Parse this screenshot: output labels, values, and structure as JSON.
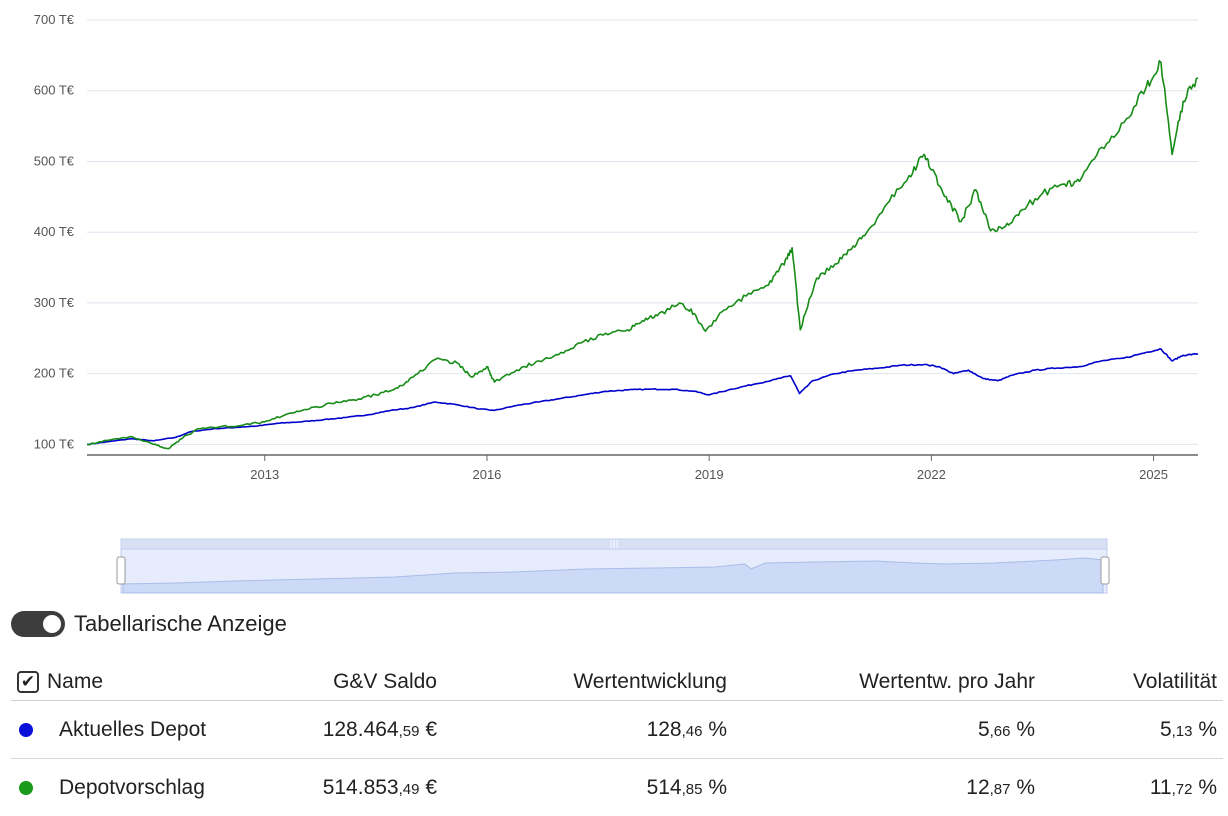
{
  "chart_data": {
    "type": "line",
    "y_ticks": [
      {
        "value": 100,
        "label": "100 T€"
      },
      {
        "value": 200,
        "label": "200 T€"
      },
      {
        "value": 300,
        "label": "300 T€"
      },
      {
        "value": 400,
        "label": "400 T€"
      },
      {
        "value": 500,
        "label": "500 T€"
      },
      {
        "value": 600,
        "label": "600 T€"
      },
      {
        "value": 700,
        "label": "700 T€"
      }
    ],
    "x_ticks": [
      {
        "value": 2013,
        "label": "2013"
      },
      {
        "value": 2016,
        "label": "2016"
      },
      {
        "value": 2019,
        "label": "2019"
      },
      {
        "value": 2022,
        "label": "2022"
      },
      {
        "value": 2025,
        "label": "2025"
      }
    ],
    "xlim": [
      2010.6,
      2025.6
    ],
    "ylim": [
      85,
      700
    ],
    "grid": true,
    "series": [
      {
        "color": "#0000cc",
        "points": [
          [
            2010.6,
            100
          ],
          [
            2010.9,
            104
          ],
          [
            2011.2,
            108
          ],
          [
            2011.5,
            105
          ],
          [
            2011.8,
            110
          ],
          [
            2012.0,
            118
          ],
          [
            2012.3,
            122
          ],
          [
            2012.6,
            124
          ],
          [
            2012.9,
            126
          ],
          [
            2013.2,
            130
          ],
          [
            2013.5,
            132
          ],
          [
            2013.8,
            135
          ],
          [
            2014.1,
            138
          ],
          [
            2014.4,
            142
          ],
          [
            2014.7,
            148
          ],
          [
            2015.0,
            152
          ],
          [
            2015.3,
            160
          ],
          [
            2015.6,
            156
          ],
          [
            2015.9,
            150
          ],
          [
            2016.1,
            148
          ],
          [
            2016.4,
            155
          ],
          [
            2016.7,
            160
          ],
          [
            2017.0,
            165
          ],
          [
            2017.3,
            170
          ],
          [
            2017.6,
            175
          ],
          [
            2017.9,
            177
          ],
          [
            2018.2,
            178
          ],
          [
            2018.5,
            178
          ],
          [
            2018.8,
            175
          ],
          [
            2019.0,
            170
          ],
          [
            2019.3,
            178
          ],
          [
            2019.6,
            185
          ],
          [
            2019.9,
            192
          ],
          [
            2020.1,
            197
          ],
          [
            2020.22,
            172
          ],
          [
            2020.4,
            190
          ],
          [
            2020.7,
            200
          ],
          [
            2021.0,
            205
          ],
          [
            2021.3,
            208
          ],
          [
            2021.6,
            212
          ],
          [
            2021.9,
            213
          ],
          [
            2022.1,
            210
          ],
          [
            2022.3,
            200
          ],
          [
            2022.5,
            205
          ],
          [
            2022.7,
            193
          ],
          [
            2022.9,
            190
          ],
          [
            2023.1,
            198
          ],
          [
            2023.4,
            205
          ],
          [
            2023.7,
            208
          ],
          [
            2024.0,
            210
          ],
          [
            2024.3,
            218
          ],
          [
            2024.6,
            222
          ],
          [
            2024.9,
            230
          ],
          [
            2025.1,
            235
          ],
          [
            2025.25,
            218
          ],
          [
            2025.4,
            226
          ],
          [
            2025.6,
            228
          ]
        ]
      },
      {
        "color": "#168c16",
        "points": [
          [
            2010.6,
            100
          ],
          [
            2010.9,
            106
          ],
          [
            2011.2,
            111
          ],
          [
            2011.5,
            100
          ],
          [
            2011.7,
            94
          ],
          [
            2011.9,
            110
          ],
          [
            2012.1,
            122
          ],
          [
            2012.4,
            125
          ],
          [
            2012.7,
            127
          ],
          [
            2013.0,
            132
          ],
          [
            2013.3,
            143
          ],
          [
            2013.6,
            150
          ],
          [
            2013.9,
            158
          ],
          [
            2014.2,
            163
          ],
          [
            2014.5,
            170
          ],
          [
            2014.8,
            180
          ],
          [
            2015.0,
            195
          ],
          [
            2015.3,
            220
          ],
          [
            2015.6,
            215
          ],
          [
            2015.8,
            195
          ],
          [
            2016.0,
            210
          ],
          [
            2016.1,
            188
          ],
          [
            2016.4,
            205
          ],
          [
            2016.7,
            218
          ],
          [
            2017.0,
            230
          ],
          [
            2017.3,
            245
          ],
          [
            2017.6,
            257
          ],
          [
            2017.9,
            262
          ],
          [
            2018.1,
            275
          ],
          [
            2018.3,
            282
          ],
          [
            2018.6,
            300
          ],
          [
            2018.8,
            285
          ],
          [
            2018.95,
            260
          ],
          [
            2019.2,
            290
          ],
          [
            2019.5,
            310
          ],
          [
            2019.8,
            325
          ],
          [
            2020.0,
            355
          ],
          [
            2020.12,
            378
          ],
          [
            2020.23,
            262
          ],
          [
            2020.45,
            335
          ],
          [
            2020.7,
            355
          ],
          [
            2020.9,
            375
          ],
          [
            2021.1,
            395
          ],
          [
            2021.4,
            440
          ],
          [
            2021.7,
            480
          ],
          [
            2021.9,
            510
          ],
          [
            2022.0,
            488
          ],
          [
            2022.2,
            450
          ],
          [
            2022.4,
            415
          ],
          [
            2022.6,
            460
          ],
          [
            2022.8,
            402
          ],
          [
            2023.0,
            408
          ],
          [
            2023.2,
            430
          ],
          [
            2023.5,
            455
          ],
          [
            2023.8,
            468
          ],
          [
            2024.0,
            472
          ],
          [
            2024.3,
            520
          ],
          [
            2024.6,
            555
          ],
          [
            2024.9,
            605
          ],
          [
            2025.1,
            640
          ],
          [
            2025.25,
            510
          ],
          [
            2025.4,
            585
          ],
          [
            2025.6,
            618
          ]
        ]
      }
    ]
  },
  "toggle": {
    "label": "Tabellarische Anzeige",
    "on": true
  },
  "table": {
    "headers": {
      "name": "Name",
      "saldo": "G&V Saldo",
      "wert": "Wertentwicklung",
      "jahr": "Wertentw. pro Jahr",
      "vol": "Volatilität"
    },
    "rows": [
      {
        "color": "#0a10d8",
        "name": "Aktuelles Depot",
        "saldo_int": "128.464",
        "saldo_frac": ",59",
        "saldo_unit": " €",
        "wert_int": "128",
        "wert_frac": ",46",
        "wert_unit": " %",
        "jahr_int": "5",
        "jahr_frac": ",66",
        "jahr_unit": " %",
        "vol_int": "5",
        "vol_frac": ",13",
        "vol_unit": " %"
      },
      {
        "color": "#1a9a1a",
        "name": "Depotvorschlag",
        "saldo_int": "514.853",
        "saldo_frac": ",49",
        "saldo_unit": " €",
        "wert_int": "514",
        "wert_frac": ",85",
        "wert_unit": " %",
        "jahr_int": "12",
        "jahr_frac": ",87",
        "jahr_unit": " %",
        "vol_int": "11",
        "vol_frac": ",72",
        "vol_unit": " %"
      }
    ]
  }
}
